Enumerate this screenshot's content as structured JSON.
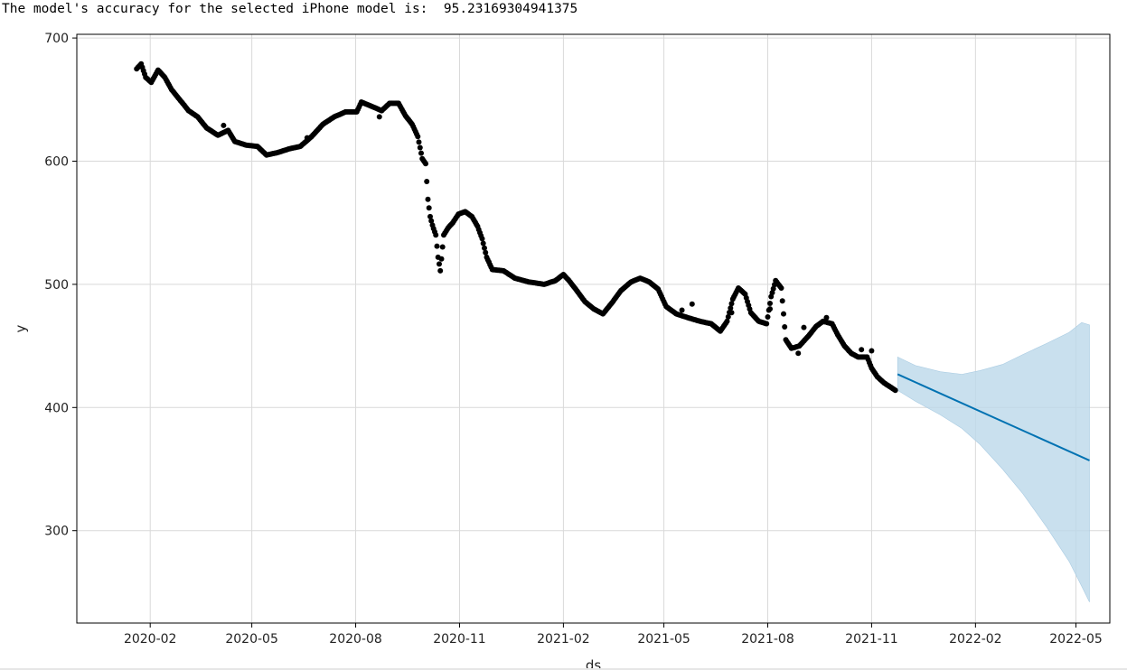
{
  "output": {
    "message": "The model's accuracy for the selected iPhone model is:  95.23169304941375"
  },
  "chart_data": {
    "type": "line",
    "xlabel": "ds",
    "ylabel": "y",
    "x_range": [
      "2019-11-28",
      "2022-05-31"
    ],
    "ylim": [
      225,
      703
    ],
    "grid": true,
    "xticks": [
      "2020-02",
      "2020-05",
      "2020-08",
      "2020-11",
      "2021-02",
      "2021-05",
      "2021-08",
      "2021-11",
      "2022-02",
      "2022-05"
    ],
    "yticks": [
      300,
      400,
      500,
      600,
      700
    ],
    "colors": {
      "observed": "#000000",
      "forecast": "#0072B2",
      "interval": "#bcd8ea"
    },
    "observed_anchors": [
      [
        "2020-01-20",
        675
      ],
      [
        "2020-01-24",
        679
      ],
      [
        "2020-01-28",
        668
      ],
      [
        "2020-02-02",
        664
      ],
      [
        "2020-02-08",
        674
      ],
      [
        "2020-02-14",
        668
      ],
      [
        "2020-02-20",
        658
      ],
      [
        "2020-02-28",
        649
      ],
      [
        "2020-03-06",
        641
      ],
      [
        "2020-03-14",
        636
      ],
      [
        "2020-03-22",
        627
      ],
      [
        "2020-04-01",
        621
      ],
      [
        "2020-04-10",
        625
      ],
      [
        "2020-04-16",
        616
      ],
      [
        "2020-04-26",
        613
      ],
      [
        "2020-05-06",
        612
      ],
      [
        "2020-05-14",
        605
      ],
      [
        "2020-05-24",
        607
      ],
      [
        "2020-06-03",
        610
      ],
      [
        "2020-06-13",
        612
      ],
      [
        "2020-06-23",
        620
      ],
      [
        "2020-07-03",
        630
      ],
      [
        "2020-07-13",
        636
      ],
      [
        "2020-07-23",
        640
      ],
      [
        "2020-08-02",
        640
      ],
      [
        "2020-08-06",
        648
      ],
      [
        "2020-08-14",
        645
      ],
      [
        "2020-08-24",
        641
      ],
      [
        "2020-08-31",
        647
      ],
      [
        "2020-09-08",
        647
      ],
      [
        "2020-09-14",
        637
      ],
      [
        "2020-09-20",
        630
      ],
      [
        "2020-09-25",
        620
      ],
      [
        "2020-09-29",
        602
      ],
      [
        "2020-10-02",
        598
      ],
      [
        "2020-10-04",
        569
      ],
      [
        "2020-10-06",
        555
      ],
      [
        "2020-10-08",
        548
      ],
      [
        "2020-10-11",
        540
      ],
      [
        "2020-10-13",
        522
      ],
      [
        "2020-10-15",
        511
      ],
      [
        "2020-10-18",
        540
      ],
      [
        "2020-10-22",
        546
      ],
      [
        "2020-10-26",
        550
      ],
      [
        "2020-10-31",
        557
      ],
      [
        "2020-11-06",
        559
      ],
      [
        "2020-11-12",
        555
      ],
      [
        "2020-11-17",
        547
      ],
      [
        "2020-11-21",
        537
      ],
      [
        "2020-11-25",
        522
      ],
      [
        "2020-11-30",
        512
      ],
      [
        "2020-12-10",
        511
      ],
      [
        "2020-12-20",
        505
      ],
      [
        "2021-01-01",
        502
      ],
      [
        "2021-01-15",
        500
      ],
      [
        "2021-01-25",
        503
      ],
      [
        "2021-02-01",
        508
      ],
      [
        "2021-02-06",
        503
      ],
      [
        "2021-02-12",
        496
      ],
      [
        "2021-02-20",
        486
      ],
      [
        "2021-02-28",
        480
      ],
      [
        "2021-03-08",
        476
      ],
      [
        "2021-03-16",
        485
      ],
      [
        "2021-03-24",
        495
      ],
      [
        "2021-04-02",
        502
      ],
      [
        "2021-04-10",
        505
      ],
      [
        "2021-04-18",
        502
      ],
      [
        "2021-04-26",
        496
      ],
      [
        "2021-05-03",
        482
      ],
      [
        "2021-05-12",
        476
      ],
      [
        "2021-05-22",
        473
      ],
      [
        "2021-06-02",
        470
      ],
      [
        "2021-06-12",
        468
      ],
      [
        "2021-06-20",
        462
      ],
      [
        "2021-06-26",
        470
      ],
      [
        "2021-07-01",
        488
      ],
      [
        "2021-07-06",
        497
      ],
      [
        "2021-07-12",
        492
      ],
      [
        "2021-07-17",
        477
      ],
      [
        "2021-07-24",
        470
      ],
      [
        "2021-07-31",
        468
      ],
      [
        "2021-08-04",
        490
      ],
      [
        "2021-08-08",
        503
      ],
      [
        "2021-08-13",
        497
      ],
      [
        "2021-08-17",
        455
      ],
      [
        "2021-08-22",
        448
      ],
      [
        "2021-08-29",
        450
      ],
      [
        "2021-09-06",
        458
      ],
      [
        "2021-09-13",
        466
      ],
      [
        "2021-09-19",
        470
      ],
      [
        "2021-09-27",
        468
      ],
      [
        "2021-10-02",
        459
      ],
      [
        "2021-10-08",
        450
      ],
      [
        "2021-10-14",
        444
      ],
      [
        "2021-10-20",
        441
      ],
      [
        "2021-10-28",
        441
      ],
      [
        "2021-11-01",
        432
      ],
      [
        "2021-11-06",
        425
      ],
      [
        "2021-11-12",
        420
      ],
      [
        "2021-11-17",
        417
      ],
      [
        "2021-11-22",
        414
      ]
    ],
    "observed_outliers": [
      [
        "2020-04-06",
        629
      ],
      [
        "2020-06-19",
        619
      ],
      [
        "2020-08-22",
        636
      ],
      [
        "2021-05-26",
        484
      ],
      [
        "2021-05-17",
        479
      ],
      [
        "2021-06-30",
        477
      ],
      [
        "2021-08-03",
        480
      ],
      [
        "2021-08-28",
        444
      ],
      [
        "2021-09-02",
        465
      ],
      [
        "2021-09-22",
        473
      ],
      [
        "2021-10-23",
        447
      ],
      [
        "2021-11-01",
        446
      ]
    ],
    "forecast": {
      "x": [
        "2021-11-24",
        "2022-05-13"
      ],
      "y": [
        427,
        357
      ]
    },
    "interval_upper": [
      [
        "2021-11-24",
        441
      ],
      [
        "2021-12-10",
        434
      ],
      [
        "2022-01-01",
        429
      ],
      [
        "2022-01-20",
        427
      ],
      [
        "2022-02-05",
        430
      ],
      [
        "2022-02-25",
        435
      ],
      [
        "2022-03-15",
        443
      ],
      [
        "2022-04-05",
        452
      ],
      [
        "2022-04-25",
        461
      ],
      [
        "2022-05-06",
        469
      ],
      [
        "2022-05-13",
        467
      ]
    ],
    "interval_lower": [
      [
        "2022-05-13",
        242
      ],
      [
        "2022-05-06",
        255
      ],
      [
        "2022-04-25",
        275
      ],
      [
        "2022-04-05",
        303
      ],
      [
        "2022-03-15",
        330
      ],
      [
        "2022-02-25",
        350
      ],
      [
        "2022-02-05",
        370
      ],
      [
        "2022-01-20",
        383
      ],
      [
        "2022-01-01",
        394
      ],
      [
        "2021-12-10",
        405
      ],
      [
        "2021-11-24",
        414
      ]
    ]
  }
}
